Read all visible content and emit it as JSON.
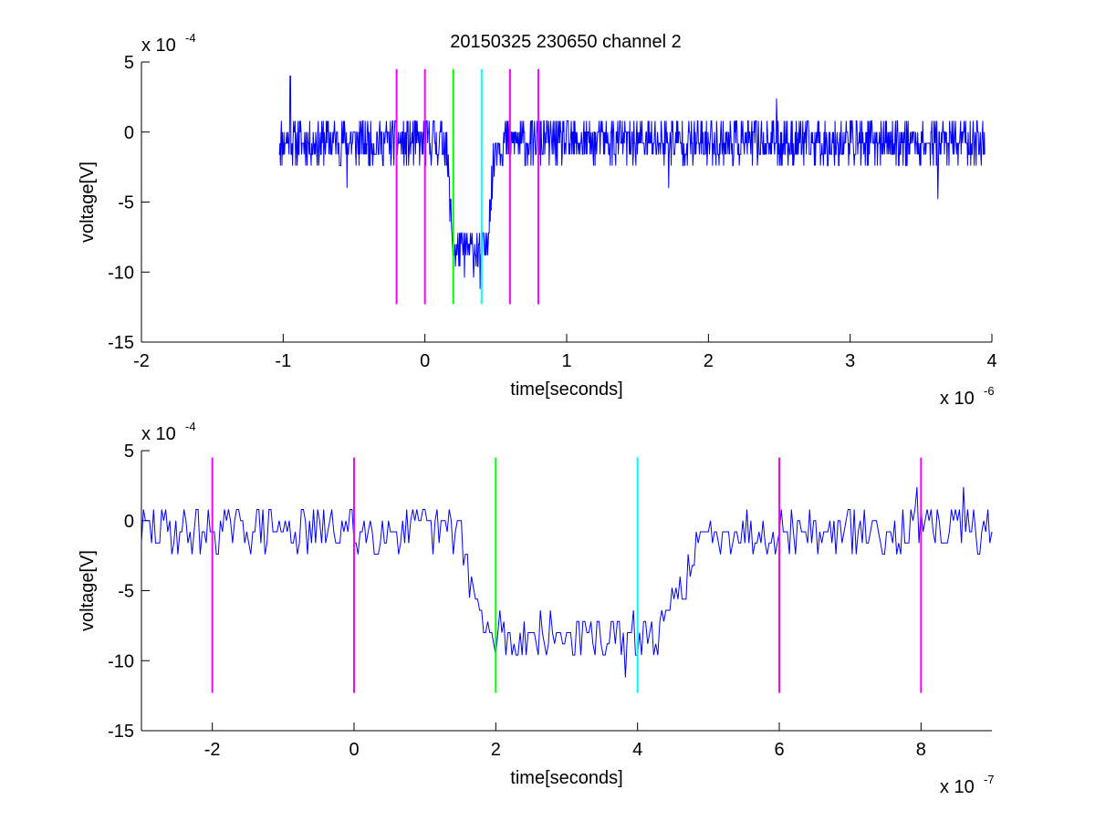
{
  "figure": {
    "title": "20150325 230650 channel 2"
  },
  "chart_data": [
    {
      "type": "line",
      "title": "20150325 230650 channel 2",
      "xlabel": "time[seconds]",
      "ylabel": "voltage[V]",
      "x_exponent_label": "x 10",
      "x_exponent": "-6",
      "y_exponent_label": "x 10",
      "y_exponent": "-4",
      "xlim": [
        -2,
        4
      ],
      "ylim": [
        -15,
        5
      ],
      "x_ticks": [
        -2,
        -1,
        0,
        1,
        2,
        3,
        4
      ],
      "y_ticks": [
        -15,
        -10,
        -5,
        0,
        5
      ],
      "x_tick_labels": [
        "-2",
        "-1",
        "0",
        "1",
        "2",
        "3",
        "4"
      ],
      "y_tick_labels": [
        "-15",
        "-10",
        "-5",
        "0",
        "5"
      ],
      "grid": false,
      "signal": {
        "color": "#0000ff",
        "x_range": [
          -1.03,
          3.95
        ],
        "baseline": -0.7,
        "noise_amplitude": 1.6,
        "pulse": {
          "fall_start": 0.15,
          "fall_end": 0.2,
          "low_level": -8.5,
          "rise_start": 0.43,
          "rise_end": 0.5
        },
        "spikes": [
          {
            "x": -0.95,
            "y": 4.0
          },
          {
            "x": -0.55,
            "y": -4.0
          },
          {
            "x": 0.39,
            "y": -11.2
          },
          {
            "x": 1.72,
            "y": -4.0
          },
          {
            "x": 2.48,
            "y": 2.4
          },
          {
            "x": 3.62,
            "y": -4.8
          }
        ]
      },
      "markers": [
        {
          "x": -0.2,
          "color": "#ff00ff",
          "y_from": -12.3,
          "y_to": 4.5
        },
        {
          "x": 0.0,
          "color": "#ff00ff",
          "y_from": -12.3,
          "y_to": 4.5
        },
        {
          "x": 0.2,
          "color": "#00ff00",
          "y_from": -12.3,
          "y_to": 4.5
        },
        {
          "x": 0.4,
          "color": "#00ffff",
          "y_from": -12.3,
          "y_to": 4.5
        },
        {
          "x": 0.6,
          "color": "#ff00ff",
          "y_from": -12.3,
          "y_to": 4.5
        },
        {
          "x": 0.8,
          "color": "#ff00ff",
          "y_from": -12.3,
          "y_to": 4.5
        }
      ]
    },
    {
      "type": "line",
      "title": "",
      "xlabel": "time[seconds]",
      "ylabel": "voltage[V]",
      "x_exponent_label": "x 10",
      "x_exponent": "-7",
      "y_exponent_label": "x 10",
      "y_exponent": "-4",
      "xlim": [
        -3,
        9
      ],
      "ylim": [
        -15,
        5
      ],
      "x_ticks": [
        -2,
        0,
        2,
        4,
        6,
        8
      ],
      "y_ticks": [
        -15,
        -10,
        -5,
        0,
        5
      ],
      "x_tick_labels": [
        "-2",
        "0",
        "2",
        "4",
        "6",
        "8"
      ],
      "y_tick_labels": [
        "-15",
        "-10",
        "-5",
        "0",
        "5"
      ],
      "grid": false,
      "signal": {
        "color": "#0000ff",
        "x_range": [
          -3,
          9
        ],
        "baseline": -0.7,
        "noise_amplitude": 1.6,
        "pulse": {
          "fall_start": 1.5,
          "fall_end": 1.85,
          "low_level": -8.3,
          "rise_start": 4.3,
          "rise_end": 5.0
        },
        "spikes": [
          {
            "x": 3.83,
            "y": -11.2
          },
          {
            "x": 7.95,
            "y": 2.4
          },
          {
            "x": 8.6,
            "y": 2.4
          },
          {
            "x": 1.62,
            "y": -5.5
          },
          {
            "x": 2.05,
            "y": -6.4
          }
        ]
      },
      "markers": [
        {
          "x": -2,
          "color": "#ff00ff",
          "y_from": -12.3,
          "y_to": 4.5
        },
        {
          "x": 0,
          "color": "#ff00ff",
          "y_from": -12.3,
          "y_to": 4.5
        },
        {
          "x": 2,
          "color": "#00ff00",
          "y_from": -12.3,
          "y_to": 4.5
        },
        {
          "x": 4,
          "color": "#00ffff",
          "y_from": -12.3,
          "y_to": 4.5
        },
        {
          "x": 6,
          "color": "#ff00ff",
          "y_from": -12.3,
          "y_to": 4.5
        },
        {
          "x": 8,
          "color": "#ff00ff",
          "y_from": -12.3,
          "y_to": 4.5
        }
      ]
    }
  ]
}
